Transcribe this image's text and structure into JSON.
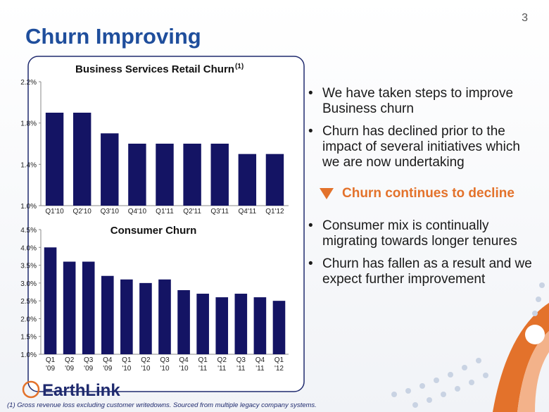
{
  "slide": {
    "page_number": "3",
    "title": "Churn Improving",
    "bullets": [
      "We have taken steps to improve Business churn",
      "Churn has declined prior to the impact of several initiatives which we are now undertaking",
      "Consumer mix is continually migrating towards longer tenures",
      "Churn has fallen as a result and we expect further improvement"
    ],
    "callout": "Churn continues to decline",
    "logo": "EarthLink",
    "footnote": "(1) Gross revenue loss excluding customer writedowns. Sourced from multiple legacy company systems."
  },
  "chart_data": [
    {
      "type": "bar",
      "title": "Business Services Retail Churn",
      "title_superscript": "(1)",
      "categories": [
        "Q1'10",
        "Q2'10",
        "Q3'10",
        "Q4'10",
        "Q1'11",
        "Q2'11",
        "Q3'11",
        "Q4'11",
        "Q1'12"
      ],
      "values": [
        1.9,
        1.9,
        1.7,
        1.6,
        1.6,
        1.6,
        1.6,
        1.5,
        1.5
      ],
      "color": "#141464",
      "ylim": [
        1.0,
        2.2
      ],
      "yticks": [
        {
          "value": 1.0,
          "label": "1.0%"
        },
        {
          "value": 1.4,
          "label": "1.4%"
        },
        {
          "value": 1.8,
          "label": "1.8%"
        },
        {
          "value": 2.2,
          "label": "2.2%"
        }
      ],
      "grid": false
    },
    {
      "type": "bar",
      "title": "Consumer Churn",
      "categories": [
        "Q1\n'09",
        "Q2\n'09",
        "Q3\n'09",
        "Q4\n'09",
        "Q1\n'10",
        "Q2\n'10",
        "Q3\n'10",
        "Q4\n'10",
        "Q1\n'11",
        "Q2\n'11",
        "Q3\n'11",
        "Q4\n'11",
        "Q1\n'12"
      ],
      "values": [
        4.0,
        3.6,
        3.6,
        3.2,
        3.1,
        3.0,
        3.1,
        2.8,
        2.7,
        2.6,
        2.7,
        2.6,
        2.5
      ],
      "color": "#141464",
      "ylim": [
        1.0,
        4.5
      ],
      "yticks": [
        {
          "value": 1.0,
          "label": "1.0%"
        },
        {
          "value": 1.5,
          "label": "1.5%"
        },
        {
          "value": 2.0,
          "label": "2.0%"
        },
        {
          "value": 2.5,
          "label": "2.5%"
        },
        {
          "value": 3.0,
          "label": "3.0%"
        },
        {
          "value": 3.5,
          "label": "3.5%"
        },
        {
          "value": 4.0,
          "label": "4.0%"
        },
        {
          "value": 4.5,
          "label": "4.5%"
        }
      ],
      "grid": false
    }
  ]
}
